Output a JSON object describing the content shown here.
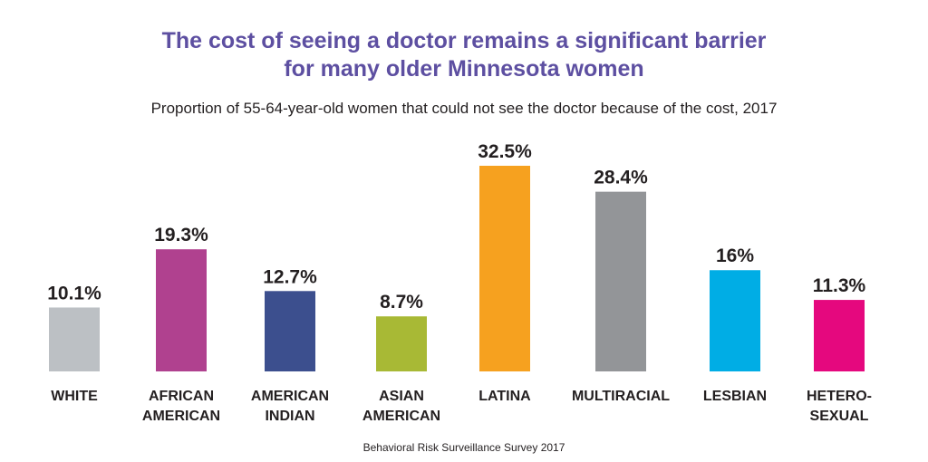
{
  "chart_data": {
    "type": "bar",
    "title": "The cost of seeing a doctor remains a significant barrier for many older Minnesota women",
    "title_lines": [
      "The cost of seeing a doctor remains a significant barrier",
      "for many older Minnesota women"
    ],
    "subtitle": "Proportion of 55-64-year-old women that could not see the doctor because of the cost, 2017",
    "source": "Behavioral Risk Surveillance Survey 2017",
    "categories": [
      [
        "WHITE"
      ],
      [
        "AFRICAN",
        "AMERICAN"
      ],
      [
        "AMERICAN",
        "INDIAN"
      ],
      [
        "ASIAN",
        "AMERICAN"
      ],
      [
        "LATINA"
      ],
      [
        "MULTIRACIAL"
      ],
      [
        "LESBIAN"
      ],
      [
        "HETERO-",
        "SEXUAL"
      ]
    ],
    "values": [
      10.1,
      19.3,
      12.7,
      8.7,
      32.5,
      28.4,
      16,
      11.3
    ],
    "labels": [
      "10.1%",
      "19.3%",
      "12.7%",
      "8.7%",
      "32.5%",
      "28.4%",
      "16%",
      "11.3%"
    ],
    "colors": [
      "#bcc0c4",
      "#b0418f",
      "#3c4f8e",
      "#a8b935",
      "#f6a11f",
      "#939598",
      "#00ade5",
      "#e5087e"
    ],
    "ylim": [
      0,
      35
    ],
    "grid": false,
    "legend": "none"
  }
}
